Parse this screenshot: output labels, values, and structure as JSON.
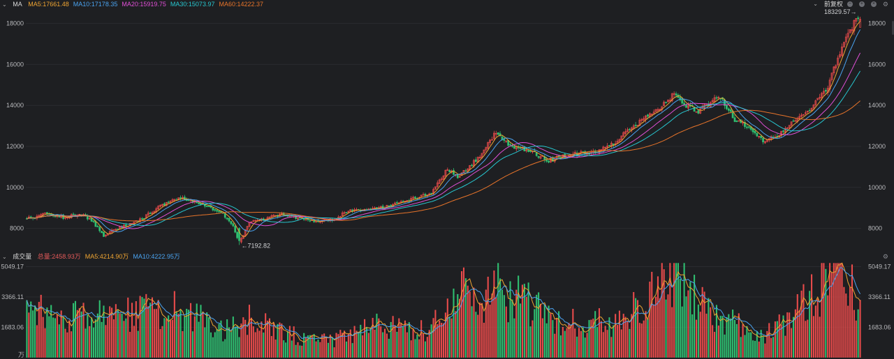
{
  "top_bar": {
    "title": "MA",
    "ma": [
      {
        "label": "MA5:17661.48",
        "color": "#f0a532"
      },
      {
        "label": "MA10:17178.35",
        "color": "#4aa3f0"
      },
      {
        "label": "MA20:15919.75",
        "color": "#e04fd6"
      },
      {
        "label": "MA30:15073.97",
        "color": "#27c7d0"
      },
      {
        "label": "MA60:14222.37",
        "color": "#e8742a"
      }
    ],
    "adjust_label": "前复权",
    "icons": [
      "minus-icon",
      "plus-icon",
      "close-icon",
      "gear-icon"
    ]
  },
  "vol_bar": {
    "title": "成交量",
    "items": [
      {
        "label": "总量:2458.93万",
        "color": "#e65a5a"
      },
      {
        "label": "MA5:4214.90万",
        "color": "#f0a532"
      },
      {
        "label": "MA10:4222.95万",
        "color": "#4aa3f0"
      }
    ]
  },
  "colors": {
    "up": "#e84b4b",
    "down": "#2fbf71",
    "grid": "#2a2b2f"
  },
  "chart_data": [
    {
      "type": "candlestick",
      "ylim": [
        7000,
        18600
      ],
      "yticks": [
        8000,
        10000,
        12000,
        14000,
        16000,
        18000
      ],
      "ytick_labels": [
        "8000",
        "10000",
        "12000",
        "14000",
        "16000",
        "18000"
      ],
      "high_label": "18329.57→",
      "low_label": "←7192.82",
      "high_value": 18329.57,
      "low_value": 7192.82,
      "anchors": [
        [
          0,
          8450
        ],
        [
          8,
          8700
        ],
        [
          18,
          8550
        ],
        [
          27,
          8700
        ],
        [
          32,
          8400
        ],
        [
          38,
          7650
        ],
        [
          45,
          8000
        ],
        [
          55,
          8350
        ],
        [
          63,
          8900
        ],
        [
          72,
          9450
        ],
        [
          80,
          9400
        ],
        [
          90,
          9050
        ],
        [
          97,
          8700
        ],
        [
          102,
          8100
        ],
        [
          105,
          7300
        ],
        [
          110,
          8300
        ],
        [
          118,
          8500
        ],
        [
          128,
          8700
        ],
        [
          140,
          8350
        ],
        [
          150,
          8400
        ],
        [
          160,
          8900
        ],
        [
          170,
          8950
        ],
        [
          180,
          9100
        ],
        [
          190,
          9400
        ],
        [
          200,
          9750
        ],
        [
          208,
          10900
        ],
        [
          213,
          10550
        ],
        [
          222,
          11300
        ],
        [
          232,
          12700
        ],
        [
          238,
          12100
        ],
        [
          248,
          11800
        ],
        [
          258,
          11300
        ],
        [
          265,
          11500
        ],
        [
          275,
          11700
        ],
        [
          283,
          11800
        ],
        [
          292,
          12300
        ],
        [
          300,
          13000
        ],
        [
          312,
          13750
        ],
        [
          320,
          14600
        ],
        [
          326,
          14000
        ],
        [
          332,
          13700
        ],
        [
          342,
          14500
        ],
        [
          350,
          13300
        ],
        [
          358,
          12900
        ],
        [
          364,
          12300
        ],
        [
          370,
          12500
        ],
        [
          378,
          13100
        ],
        [
          387,
          13800
        ],
        [
          395,
          14700
        ],
        [
          400,
          16000
        ],
        [
          405,
          17300
        ],
        [
          409,
          18000
        ],
        [
          412,
          18329
        ]
      ],
      "ma_series": [
        {
          "name": "MA5",
          "period": 5,
          "color": "#f0a532"
        },
        {
          "name": "MA10",
          "period": 10,
          "color": "#4aa3f0"
        },
        {
          "name": "MA20",
          "period": 20,
          "color": "#e04fd6"
        },
        {
          "name": "MA30",
          "period": 30,
          "color": "#27c7d0"
        },
        {
          "name": "MA60",
          "period": 60,
          "color": "#e8742a"
        }
      ],
      "candle_count": 413
    },
    {
      "type": "bar",
      "ylim": [
        0,
        5300
      ],
      "yticks": [
        1683.06,
        3366.11,
        5049.17
      ],
      "ytick_labels": [
        "1683.06",
        "3366.11",
        "5049.17"
      ],
      "unit_label": "万",
      "anchors": [
        [
          0,
          2600
        ],
        [
          15,
          2500
        ],
        [
          30,
          2300
        ],
        [
          45,
          2250
        ],
        [
          60,
          2700
        ],
        [
          70,
          2950
        ],
        [
          80,
          2550
        ],
        [
          92,
          1650
        ],
        [
          100,
          1550
        ],
        [
          108,
          2300
        ],
        [
          120,
          1650
        ],
        [
          135,
          1200
        ],
        [
          150,
          950
        ],
        [
          165,
          1450
        ],
        [
          175,
          2100
        ],
        [
          185,
          1500
        ],
        [
          198,
          1550
        ],
        [
          210,
          2700
        ],
        [
          218,
          3900
        ],
        [
          225,
          2900
        ],
        [
          233,
          3950
        ],
        [
          240,
          3400
        ],
        [
          250,
          3000
        ],
        [
          265,
          2000
        ],
        [
          280,
          1950
        ],
        [
          295,
          2100
        ],
        [
          312,
          3800
        ],
        [
          320,
          4600
        ],
        [
          328,
          3700
        ],
        [
          340,
          2200
        ],
        [
          352,
          1850
        ],
        [
          365,
          1400
        ],
        [
          378,
          2400
        ],
        [
          390,
          3500
        ],
        [
          400,
          4500
        ],
        [
          406,
          4800
        ],
        [
          412,
          2400
        ]
      ],
      "bar_count": 413
    }
  ]
}
